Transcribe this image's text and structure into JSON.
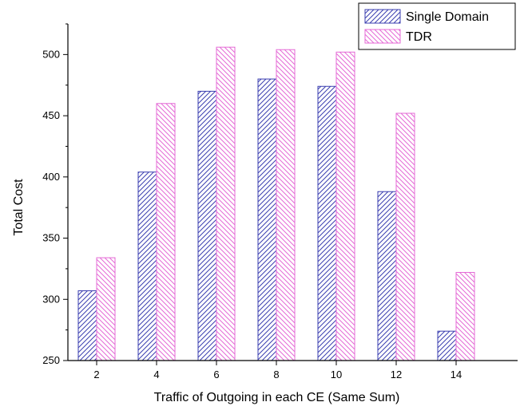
{
  "chart_data": {
    "type": "bar",
    "categories": [
      "2",
      "4",
      "6",
      "8",
      "10",
      "12",
      "14"
    ],
    "series": [
      {
        "name": "Single Domain",
        "values": [
          307,
          404,
          470,
          480,
          474,
          388,
          274
        ],
        "color": "#3b3fb0"
      },
      {
        "name": "TDR",
        "values": [
          334,
          460,
          506,
          504,
          502,
          452,
          322
        ],
        "color": "#e46ad6"
      }
    ],
    "title": "",
    "xlabel": "Traffic of Outgoing in each CE (Same Sum)",
    "ylabel": "Total Cost",
    "ylim": [
      250,
      525
    ],
    "yticks": [
      250,
      300,
      350,
      400,
      450,
      500
    ],
    "grid": false,
    "legend_position": "top-right"
  }
}
